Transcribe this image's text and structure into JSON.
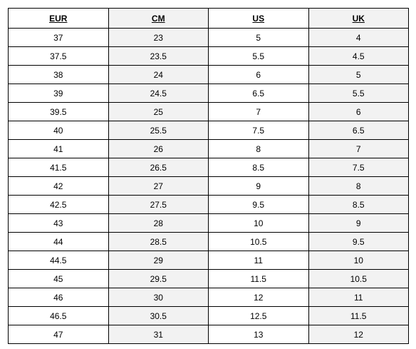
{
  "table": {
    "headers": [
      "EUR",
      "CM",
      "US",
      "UK"
    ],
    "rows": [
      [
        "37",
        "23",
        "5",
        "4"
      ],
      [
        "37.5",
        "23.5",
        "5.5",
        "4.5"
      ],
      [
        "38",
        "24",
        "6",
        "5"
      ],
      [
        "39",
        "24.5",
        "6.5",
        "5.5"
      ],
      [
        "39.5",
        "25",
        "7",
        "6"
      ],
      [
        "40",
        "25.5",
        "7.5",
        "6.5"
      ],
      [
        "41",
        "26",
        "8",
        "7"
      ],
      [
        "41.5",
        "26.5",
        "8.5",
        "7.5"
      ],
      [
        "42",
        "27",
        "9",
        "8"
      ],
      [
        "42.5",
        "27.5",
        "9.5",
        "8.5"
      ],
      [
        "43",
        "28",
        "10",
        "9"
      ],
      [
        "44",
        "28.5",
        "10.5",
        "9.5"
      ],
      [
        "44.5",
        "29",
        "11",
        "10"
      ],
      [
        "45",
        "29.5",
        "11.5",
        "10.5"
      ],
      [
        "46",
        "30",
        "12",
        "11"
      ],
      [
        "46.5",
        "30.5",
        "12.5",
        "11.5"
      ],
      [
        "47",
        "31",
        "13",
        "12"
      ]
    ],
    "colors": {
      "border": "#000000",
      "alt_column_bg": "#f2f2f2",
      "text": "#000000"
    }
  }
}
